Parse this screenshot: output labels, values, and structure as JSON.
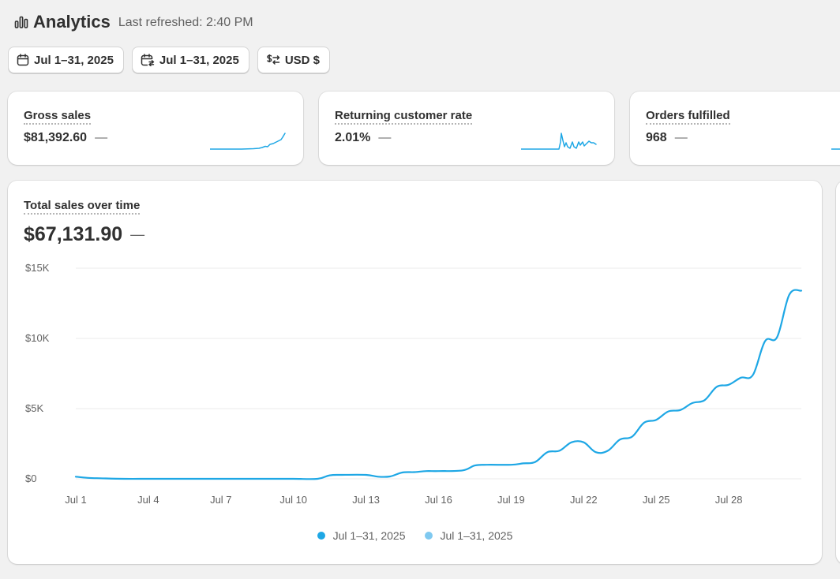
{
  "header": {
    "title": "Analytics",
    "last_refreshed": "Last refreshed: 2:40 PM"
  },
  "filters": {
    "date_range": "Jul 1–31, 2025",
    "comparison_range": "Jul 1–31, 2025",
    "currency": "USD $"
  },
  "metrics": [
    {
      "label": "Gross sales",
      "value": "$81,392.60",
      "change": "—"
    },
    {
      "label": "Returning customer rate",
      "value": "2.01%",
      "change": "—"
    },
    {
      "label": "Orders fulfilled",
      "value": "968",
      "change": "—"
    }
  ],
  "colors": {
    "primary_series": "#1ea7e5",
    "comparison_series": "#7fc9f0",
    "grid": "#ebebeb"
  },
  "chart_data": {
    "type": "line",
    "title": "Total sales over time",
    "total": "$67,131.90",
    "total_change": "—",
    "y_ticks": [
      "$0",
      "$5K",
      "$10K",
      "$15K"
    ],
    "y_tick_values": [
      0,
      5000,
      10000,
      15000
    ],
    "ylim": [
      0,
      15000
    ],
    "x_labels": [
      "Jul 1",
      "Jul 4",
      "Jul 7",
      "Jul 10",
      "Jul 13",
      "Jul 16",
      "Jul 19",
      "Jul 22",
      "Jul 25",
      "Jul 28"
    ],
    "x_label_days": [
      1,
      4,
      7,
      10,
      13,
      16,
      19,
      22,
      25,
      28
    ],
    "x_range": [
      1,
      31
    ],
    "series": [
      {
        "name": "Jul 1–31, 2025",
        "days": [
          1,
          1.5,
          2,
          3,
          4,
          5,
          6,
          7,
          8,
          9,
          10,
          11,
          11.5,
          12,
          13,
          13.5,
          14,
          14.5,
          15,
          15.5,
          16,
          17,
          17.5,
          18,
          19,
          19.5,
          20,
          20.5,
          21,
          21.5,
          22,
          22.5,
          23,
          23.5,
          24,
          24.5,
          25,
          25.5,
          26,
          26.5,
          27,
          27.5,
          28,
          28.5,
          29,
          29.5,
          30,
          30.5,
          31
        ],
        "values": [
          150,
          70,
          40,
          0,
          0,
          0,
          0,
          0,
          0,
          0,
          0,
          0,
          250,
          280,
          280,
          150,
          170,
          450,
          480,
          550,
          550,
          600,
          950,
          1000,
          1000,
          1100,
          1200,
          1900,
          2000,
          2600,
          2600,
          1900,
          2000,
          2800,
          3000,
          4000,
          4200,
          4800,
          4900,
          5400,
          5600,
          6550,
          6700,
          7200,
          7400,
          9800,
          10100,
          13100,
          13400
        ]
      }
    ],
    "legend": [
      {
        "name": "Jul 1–31, 2025",
        "color": "#1ea7e5"
      },
      {
        "name": "Jul 1–31, 2025",
        "color": "#7fc9f0"
      }
    ]
  }
}
